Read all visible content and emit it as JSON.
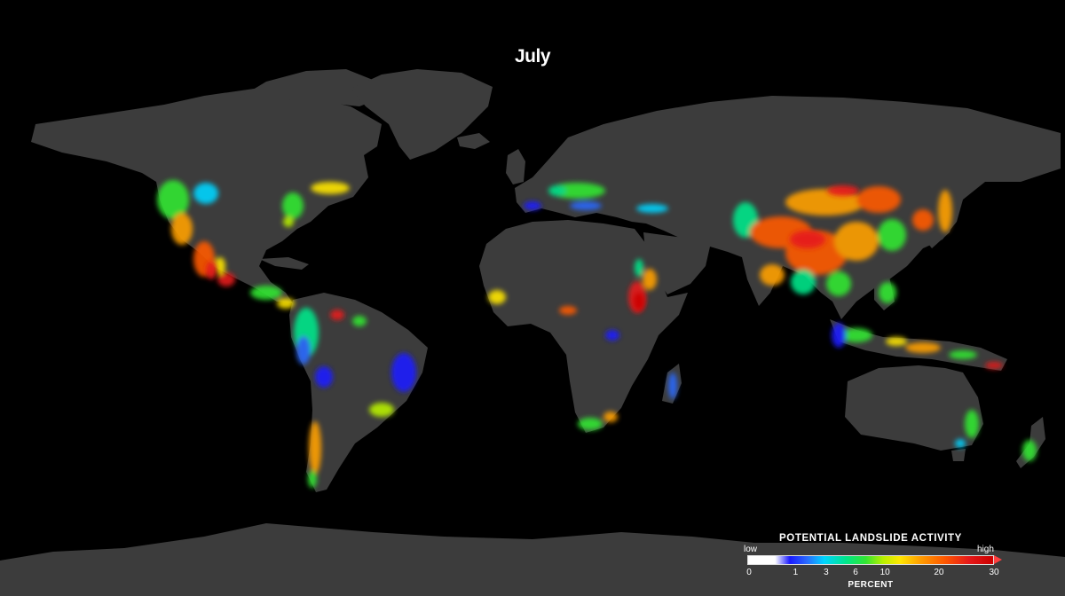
{
  "map": {
    "title": "July",
    "colors": {
      "ocean": "#000000",
      "land": "#3c3c3c",
      "low": "#1a1aff",
      "mid": "#33e633",
      "high": "#e61a1a"
    }
  },
  "legend": {
    "title": "POTENTIAL LANDSLIDE ACTIVITY",
    "low_label": "low",
    "high_label": "high",
    "unit": "PERCENT",
    "ticks": [
      {
        "label": "0",
        "value": 0
      },
      {
        "label": "1",
        "value": 1
      },
      {
        "label": "3",
        "value": 3
      },
      {
        "label": "6",
        "value": 6
      },
      {
        "label": "10",
        "value": 10
      },
      {
        "label": "20",
        "value": 20
      },
      {
        "label": "30",
        "value": 30
      }
    ]
  }
}
